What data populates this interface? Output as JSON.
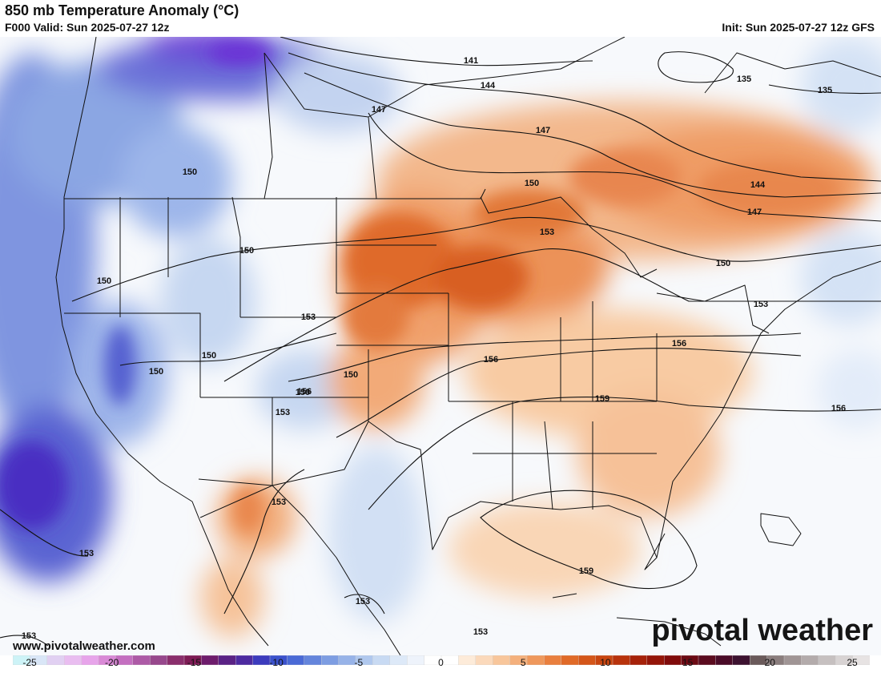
{
  "header": {
    "title": "850 mb Temperature Anomaly (°C)",
    "valid": "F000 Valid: Sun 2025-07-27 12z",
    "init": "Init: Sun 2025-07-27 12z GFS"
  },
  "footer": {
    "website": "www.pivotalweather.com",
    "logo_text": "pivotal weather"
  },
  "colorbar": {
    "ticks": [
      "-25",
      "-20",
      "-15",
      "-10",
      "-5",
      "0",
      "5",
      "10",
      "15",
      "20",
      "25"
    ],
    "colors": [
      "#cdf3f7",
      "#d9e6f7",
      "#e1d0f2",
      "#e9bdf0",
      "#e7a4ea",
      "#d989d6",
      "#c46fc0",
      "#ad5aa6",
      "#97488c",
      "#8a2e6c",
      "#7d1b55",
      "#6e1c6c",
      "#5a2285",
      "#4d2aa0",
      "#3c3bbd",
      "#3b52cc",
      "#4a6ad6",
      "#6485dc",
      "#7d9de2",
      "#97b3e8",
      "#b0c8ee",
      "#c8daf3",
      "#dde9f8",
      "#eef3fb",
      "#ffffff",
      "#ffffff",
      "#fdebd9",
      "#fbd9bb",
      "#f8c69b",
      "#f4b07c",
      "#ef985c",
      "#e97f3e",
      "#e06a28",
      "#d45619",
      "#c74510",
      "#b8330c",
      "#a6220a",
      "#941509",
      "#800b0b",
      "#6c0a14",
      "#5b0b1f",
      "#4a0b28",
      "#3d1230",
      "#6a5a5a",
      "#8a7d7d",
      "#a09595",
      "#b3abab",
      "#c6c0c0",
      "#d8d3d3",
      "#e7e3e3"
    ]
  },
  "contours": [
    {
      "label": "141"
    },
    {
      "label": "144"
    },
    {
      "label": "147"
    },
    {
      "label": "135"
    },
    {
      "label": "135"
    },
    {
      "label": "147"
    },
    {
      "label": "144"
    },
    {
      "label": "147"
    },
    {
      "label": "150"
    },
    {
      "label": "150"
    },
    {
      "label": "150"
    },
    {
      "label": "150"
    },
    {
      "label": "153"
    },
    {
      "label": "150"
    },
    {
      "label": "153"
    },
    {
      "label": "150"
    },
    {
      "label": "150"
    },
    {
      "label": "150"
    },
    {
      "label": "156"
    },
    {
      "label": "153"
    },
    {
      "label": "156"
    },
    {
      "label": "150"
    },
    {
      "label": "156"
    },
    {
      "label": "159"
    },
    {
      "label": "156"
    },
    {
      "label": "153"
    },
    {
      "label": "159"
    },
    {
      "label": "153"
    },
    {
      "label": "153"
    },
    {
      "label": "153"
    },
    {
      "label": "153"
    },
    {
      "label": "153"
    }
  ]
}
